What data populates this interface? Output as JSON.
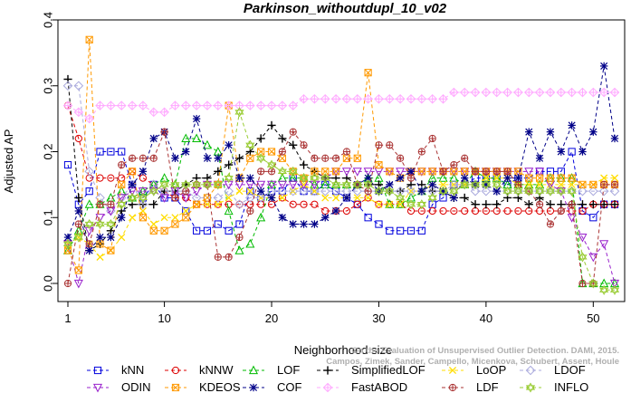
{
  "chart_data": {
    "type": "line",
    "title": "Parkinson_withoutdupl_10_v02",
    "xlabel": "Neighborhood size",
    "ylabel": "Adjusted AP",
    "xlim": [
      1,
      52
    ],
    "ylim": [
      0.0,
      0.4
    ],
    "xticks": [
      1,
      10,
      20,
      30,
      40,
      50
    ],
    "yticks": [
      0.0,
      0.1,
      0.2,
      0.3,
      0.4
    ],
    "grid": false,
    "legend_position": "bottom",
    "x": [
      1,
      2,
      3,
      4,
      5,
      6,
      7,
      8,
      9,
      10,
      11,
      12,
      13,
      14,
      15,
      16,
      17,
      18,
      19,
      20,
      21,
      22,
      23,
      24,
      25,
      26,
      27,
      28,
      29,
      30,
      31,
      32,
      33,
      34,
      35,
      36,
      37,
      38,
      39,
      40,
      41,
      42,
      43,
      44,
      45,
      46,
      47,
      48,
      49,
      50,
      51,
      52
    ],
    "series": [
      {
        "name": "kNN",
        "color": "#0000dd",
        "marker": "square",
        "values": [
          0.18,
          0.12,
          0.14,
          0.2,
          0.2,
          0.2,
          0.15,
          0.13,
          0.15,
          0.13,
          0.13,
          0.11,
          0.08,
          0.08,
          0.09,
          0.08,
          0.09,
          0.14,
          0.13,
          0.14,
          0.14,
          0.16,
          0.14,
          0.14,
          0.15,
          0.14,
          0.13,
          0.12,
          0.1,
          0.09,
          0.08,
          0.08,
          0.08,
          0.08,
          0.12,
          0.13,
          0.15,
          0.15,
          0.16,
          0.16,
          0.16,
          0.15,
          0.16,
          0.16,
          0.17,
          0.17,
          0.17,
          0.2,
          0.11,
          0.1,
          0.12,
          0.12
        ]
      },
      {
        "name": "kNNW",
        "color": "#dd0000",
        "marker": "circle",
        "values": [
          0.27,
          0.22,
          0.16,
          0.16,
          0.16,
          0.16,
          0.17,
          0.16,
          0.15,
          0.14,
          0.13,
          0.13,
          0.12,
          0.12,
          0.12,
          0.12,
          0.12,
          0.12,
          0.12,
          0.12,
          0.13,
          0.12,
          0.12,
          0.12,
          0.11,
          0.11,
          0.11,
          0.12,
          0.13,
          0.12,
          0.12,
          0.12,
          0.11,
          0.11,
          0.11,
          0.11,
          0.11,
          0.11,
          0.11,
          0.11,
          0.11,
          0.11,
          0.11,
          0.11,
          0.11,
          0.11,
          0.11,
          0.11,
          0.11,
          0.12,
          0.12,
          0.12
        ]
      },
      {
        "name": "LOF",
        "color": "#00bb00",
        "marker": "triangle-up",
        "values": [
          0.05,
          0.08,
          0.12,
          0.12,
          0.13,
          0.14,
          0.13,
          0.14,
          0.15,
          0.16,
          0.15,
          0.22,
          0.22,
          0.21,
          0.2,
          0.11,
          0.05,
          0.06,
          0.1,
          0.15,
          0.16,
          0.16,
          0.16,
          0.15,
          0.15,
          0.15,
          0.15,
          0.15,
          0.16,
          0.16,
          0.12,
          0.12,
          0.13,
          0.14,
          0.16,
          0.16,
          0.16,
          0.15,
          0.17,
          0.16,
          0.16,
          0.15,
          0.15,
          0.15,
          0.15,
          0.16,
          0.16,
          0.16,
          0.0,
          0.0,
          0.0,
          0.0
        ]
      },
      {
        "name": "SimplifiedLOF",
        "color": "#000000",
        "marker": "plus",
        "values": [
          0.31,
          0.13,
          0.05,
          0.06,
          0.08,
          0.11,
          0.12,
          0.12,
          0.12,
          0.14,
          0.14,
          0.15,
          0.16,
          0.16,
          0.17,
          0.18,
          0.19,
          0.2,
          0.22,
          0.24,
          0.22,
          0.21,
          0.18,
          0.17,
          0.16,
          0.16,
          0.16,
          0.15,
          0.15,
          0.15,
          0.14,
          0.14,
          0.15,
          0.15,
          0.14,
          0.14,
          0.13,
          0.13,
          0.12,
          0.12,
          0.12,
          0.13,
          0.13,
          0.12,
          0.13,
          0.12,
          0.12,
          0.12,
          0.12,
          0.12,
          0.12,
          0.12
        ]
      },
      {
        "name": "LoOP",
        "color": "#ffdd00",
        "marker": "x",
        "values": [
          0.06,
          0.07,
          0.06,
          0.04,
          0.05,
          0.07,
          0.1,
          0.11,
          0.09,
          0.1,
          0.1,
          0.11,
          0.12,
          0.12,
          0.12,
          0.13,
          0.14,
          0.14,
          0.13,
          0.13,
          0.13,
          0.14,
          0.15,
          0.14,
          0.13,
          0.13,
          0.13,
          0.13,
          0.13,
          0.12,
          0.12,
          0.12,
          0.14,
          0.14,
          0.15,
          0.15,
          0.15,
          0.15,
          0.15,
          0.16,
          0.16,
          0.16,
          0.15,
          0.15,
          0.15,
          0.15,
          0.15,
          0.15,
          0.15,
          0.15,
          0.16,
          0.16
        ]
      },
      {
        "name": "LDOF",
        "color": "#aaaadd",
        "marker": "diamond",
        "values": [
          0.3,
          0.3,
          0.17,
          0.13,
          0.11,
          0.13,
          0.15,
          0.12,
          0.15,
          0.14,
          0.14,
          0.14,
          0.13,
          0.13,
          0.13,
          0.14,
          0.12,
          0.13,
          0.13,
          0.14,
          0.14,
          0.14,
          0.14,
          0.14,
          0.14,
          0.14,
          0.14,
          0.14,
          0.14,
          0.14,
          0.14,
          0.14,
          0.14,
          0.14,
          0.14,
          0.14,
          0.15,
          0.15,
          0.14,
          0.14,
          0.14,
          0.14,
          0.14,
          0.14,
          0.14,
          0.14,
          0.14,
          0.14,
          0.14,
          0.14,
          0.14,
          0.14
        ]
      },
      {
        "name": "ODIN",
        "color": "#9922cc",
        "marker": "triangle-down",
        "values": [
          0.06,
          0.0,
          0.08,
          0.1,
          0.11,
          0.13,
          0.14,
          0.14,
          0.14,
          0.13,
          0.14,
          0.13,
          0.14,
          0.15,
          0.15,
          0.15,
          0.15,
          0.15,
          0.15,
          0.15,
          0.15,
          0.15,
          0.15,
          0.15,
          0.16,
          0.17,
          0.17,
          0.17,
          0.17,
          0.17,
          0.17,
          0.17,
          0.17,
          0.17,
          0.17,
          0.17,
          0.17,
          0.17,
          0.17,
          0.17,
          0.17,
          0.17,
          0.17,
          0.17,
          0.17,
          0.15,
          0.14,
          0.1,
          0.07,
          0.04,
          0.06,
          0.0
        ]
      },
      {
        "name": "KDEOS",
        "color": "#ff9900",
        "marker": "square-x",
        "values": [
          0.05,
          0.02,
          0.37,
          0.06,
          0.05,
          0.15,
          0.17,
          0.1,
          0.08,
          0.08,
          0.09,
          0.1,
          0.12,
          0.13,
          0.15,
          0.27,
          0.16,
          0.19,
          0.2,
          0.2,
          0.19,
          0.17,
          0.16,
          0.17,
          0.17,
          0.17,
          0.19,
          0.19,
          0.32,
          0.18,
          0.17,
          0.16,
          0.17,
          0.17,
          0.17,
          0.17,
          0.17,
          0.17,
          0.17,
          0.17,
          0.17,
          0.17,
          0.17,
          0.16,
          0.16,
          0.16,
          0.16,
          0.16,
          0.15,
          0.15,
          0.15,
          0.15
        ]
      },
      {
        "name": "COF",
        "color": "#000088",
        "marker": "star",
        "values": [
          0.07,
          0.11,
          0.05,
          0.07,
          0.07,
          0.1,
          0.15,
          0.17,
          0.22,
          0.23,
          0.19,
          0.2,
          0.25,
          0.19,
          0.19,
          0.21,
          0.16,
          0.16,
          0.14,
          0.13,
          0.1,
          0.09,
          0.09,
          0.09,
          0.1,
          0.11,
          0.13,
          0.15,
          0.16,
          0.14,
          0.15,
          0.16,
          0.17,
          0.14,
          0.15,
          0.14,
          0.13,
          0.16,
          0.15,
          0.15,
          0.14,
          0.16,
          0.16,
          0.23,
          0.19,
          0.23,
          0.2,
          0.24,
          0.2,
          0.23,
          0.33,
          0.22
        ]
      },
      {
        "name": "FastABOD",
        "color": "#ffaaff",
        "marker": "diamond-plus",
        "values": [
          0.27,
          0.26,
          0.25,
          0.27,
          0.27,
          0.27,
          0.27,
          0.27,
          0.26,
          0.26,
          0.27,
          0.27,
          0.27,
          0.27,
          0.27,
          0.27,
          0.27,
          0.27,
          0.27,
          0.27,
          0.27,
          0.27,
          0.28,
          0.28,
          0.28,
          0.28,
          0.28,
          0.28,
          0.28,
          0.28,
          0.28,
          0.28,
          0.28,
          0.28,
          0.28,
          0.28,
          0.29,
          0.29,
          0.29,
          0.29,
          0.29,
          0.29,
          0.29,
          0.29,
          0.29,
          0.29,
          0.29,
          0.29,
          0.29,
          0.29,
          0.29,
          0.29
        ]
      },
      {
        "name": "LDF",
        "color": "#aa3333",
        "marker": "circle-plus",
        "values": [
          0.0,
          0.09,
          0.06,
          0.12,
          0.12,
          0.18,
          0.19,
          0.19,
          0.19,
          0.23,
          0.13,
          0.14,
          0.15,
          0.15,
          0.04,
          0.04,
          0.07,
          0.11,
          0.17,
          0.17,
          0.2,
          0.23,
          0.21,
          0.19,
          0.19,
          0.19,
          0.2,
          0.15,
          0.14,
          0.21,
          0.21,
          0.19,
          0.16,
          0.2,
          0.22,
          0.17,
          0.18,
          0.19,
          0.17,
          0.17,
          0.17,
          0.17,
          0.15,
          0.14,
          0.12,
          0.09,
          0.11,
          0.12,
          0.0,
          0.0,
          0.15,
          0.15
        ]
      },
      {
        "name": "INFLO",
        "color": "#99cc33",
        "marker": "star-x",
        "values": [
          0.06,
          0.07,
          0.09,
          0.09,
          0.09,
          0.12,
          0.13,
          0.13,
          0.14,
          0.15,
          0.15,
          0.15,
          0.15,
          0.15,
          0.15,
          0.16,
          0.26,
          0.21,
          0.19,
          0.18,
          0.17,
          0.17,
          0.16,
          0.16,
          0.16,
          0.15,
          0.15,
          0.15,
          0.15,
          0.14,
          0.14,
          0.13,
          0.12,
          0.12,
          0.13,
          0.14,
          0.14,
          0.15,
          0.15,
          0.15,
          0.15,
          0.14,
          0.14,
          0.14,
          0.14,
          0.14,
          0.14,
          0.14,
          0.04,
          0.0,
          -0.01,
          -0.01
        ]
      }
    ]
  },
  "watermark": "Campos, Zimek, Sander, Campello, Micenkova, Schubert, Assent, Houle",
  "watermark_line1": "On the Evaluation of Unsupervised Outlier Detection. DAMI, 2015."
}
